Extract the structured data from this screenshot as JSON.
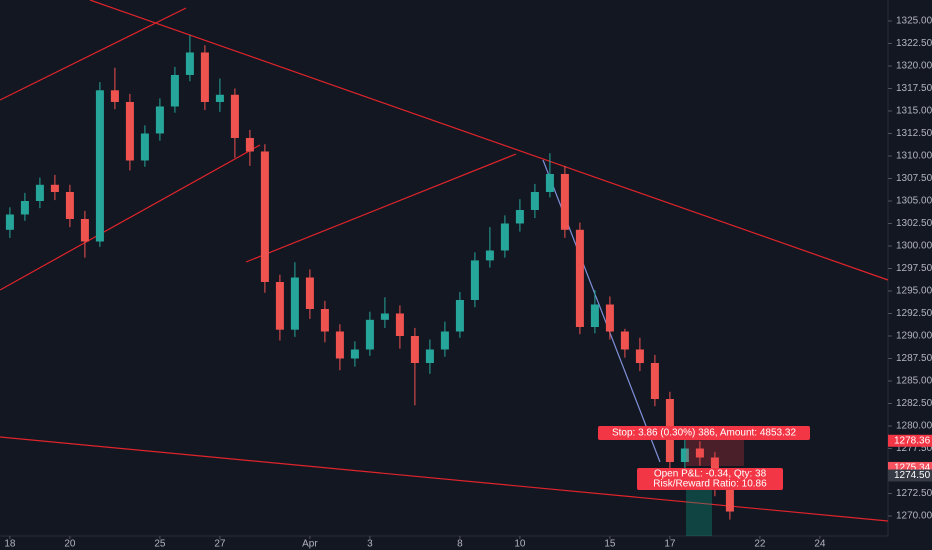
{
  "chart_data": {
    "type": "candlestick",
    "up_color": "#26a69a",
    "down_color": "#ef5350",
    "xlim": [
      -0.33,
      29.27
    ],
    "ylim": [
      1267.78,
      1327.33
    ],
    "grid": false,
    "xticks": [
      {
        "value": 0,
        "label": "18"
      },
      {
        "value": 2,
        "label": "20"
      },
      {
        "value": 5,
        "label": "25"
      },
      {
        "value": 7,
        "label": "27"
      },
      {
        "value": 10,
        "label": "Apr"
      },
      {
        "value": 12,
        "label": "3"
      },
      {
        "value": 15,
        "label": "8"
      },
      {
        "value": 17,
        "label": "10"
      },
      {
        "value": 20,
        "label": "15"
      },
      {
        "value": 22,
        "label": "17"
      },
      {
        "value": 25,
        "label": "22"
      },
      {
        "value": 27,
        "label": "24"
      }
    ],
    "yticks": [
      {
        "value": 1270,
        "label": "1270.00"
      },
      {
        "value": 1272.5,
        "label": "1272.50"
      },
      {
        "value": 1275,
        "label": "1275.00"
      },
      {
        "value": 1277.5,
        "label": "1277.50"
      },
      {
        "value": 1280,
        "label": "1280.00"
      },
      {
        "value": 1282.5,
        "label": "1282.50"
      },
      {
        "value": 1285,
        "label": "1285.00"
      },
      {
        "value": 1287.5,
        "label": "1287.50"
      },
      {
        "value": 1290,
        "label": "1290.00"
      },
      {
        "value": 1292.5,
        "label": "1292.50"
      },
      {
        "value": 1295,
        "label": "1295.00"
      },
      {
        "value": 1297.5,
        "label": "1297.50"
      },
      {
        "value": 1300,
        "label": "1300.00"
      },
      {
        "value": 1302.5,
        "label": "1302.50"
      },
      {
        "value": 1305,
        "label": "1305.00"
      },
      {
        "value": 1307.5,
        "label": "1307.50"
      },
      {
        "value": 1310,
        "label": "1310.00"
      },
      {
        "value": 1312.5,
        "label": "1312.50"
      },
      {
        "value": 1315,
        "label": "1315.00"
      },
      {
        "value": 1317.5,
        "label": "1317.50"
      },
      {
        "value": 1320,
        "label": "1320.00"
      },
      {
        "value": 1322.5,
        "label": "1322.50"
      },
      {
        "value": 1325,
        "label": "1325.00"
      }
    ],
    "x": [
      0,
      0.5,
      1,
      1.5,
      2,
      2.5,
      3,
      3.5,
      4,
      4.5,
      5,
      5.5,
      6,
      6.5,
      7,
      7.5,
      8,
      8.5,
      9,
      9.5,
      10,
      10.5,
      11,
      11.5,
      12,
      12.5,
      13,
      13.5,
      14,
      14.5,
      15,
      15.5,
      16,
      16.5,
      17,
      17.5,
      18,
      18.5,
      19,
      19.5,
      20,
      20.5,
      21,
      21.5,
      22,
      22.5,
      23,
      23.5,
      24
    ],
    "open": [
      1301.8,
      1303.5,
      1305,
      1306.8,
      1306,
      1303,
      1300.5,
      1317.3,
      1316,
      1309.5,
      1312.5,
      1315.5,
      1319,
      1321.5,
      1316,
      1316.8,
      1312,
      1310.5,
      1296,
      1290.7,
      1296.5,
      1293,
      1290.5,
      1287.5,
      1288.5,
      1291.8,
      1292.5,
      1290,
      1287,
      1288.5,
      1290.5,
      1294,
      1298.4,
      1299.5,
      1302.5,
      1304,
      1306,
      1308,
      1301.8,
      1291,
      1293.5,
      1290.5,
      1288.5,
      1287,
      1283,
      1276,
      1277.5,
      1276.5,
      1273
    ],
    "high": [
      1304.3,
      1305.9,
      1307.6,
      1307.9,
      1306.8,
      1303.9,
      1318.2,
      1319.8,
      1316.9,
      1313.4,
      1316.4,
      1319.9,
      1323.4,
      1322.3,
      1318.6,
      1317.5,
      1312.9,
      1311.3,
      1296.8,
      1298.2,
      1297.4,
      1293.9,
      1291.3,
      1289.4,
      1292.7,
      1294.3,
      1293.4,
      1290.9,
      1289.6,
      1291.6,
      1294.9,
      1299.3,
      1302.1,
      1303.4,
      1305.2,
      1306.9,
      1310.3,
      1308.9,
      1302.6,
      1295.1,
      1294.4,
      1290.8,
      1289.8,
      1287.9,
      1283.8,
      1278.6,
      1278.3,
      1277.1,
      1273.8
    ],
    "low": [
      1300.9,
      1302.8,
      1304.2,
      1305.1,
      1302.1,
      1298.7,
      1299.9,
      1315.2,
      1308.4,
      1308.8,
      1311.7,
      1314.8,
      1318.3,
      1315.1,
      1314.9,
      1309.8,
      1308.9,
      1294.8,
      1289.5,
      1289.9,
      1291.9,
      1289.3,
      1286.2,
      1286.6,
      1287.8,
      1290.9,
      1288.6,
      1282.3,
      1285.8,
      1287.7,
      1289.8,
      1293.2,
      1297.6,
      1298.7,
      1301.6,
      1303.1,
      1305.4,
      1300.9,
      1290.2,
      1290.3,
      1289.6,
      1287.6,
      1286.1,
      1282.2,
      1274.9,
      1275.1,
      1275.6,
      1272.2,
      1269.6
    ],
    "close": [
      1303.5,
      1305,
      1306.8,
      1306,
      1303,
      1300.5,
      1317.3,
      1316,
      1309.5,
      1312.5,
      1315.5,
      1319,
      1321.5,
      1316,
      1316.8,
      1312,
      1310.5,
      1296,
      1290.7,
      1296.5,
      1293,
      1290.5,
      1287.5,
      1288.5,
      1291.8,
      1292.5,
      1290,
      1287,
      1288.5,
      1290.5,
      1294,
      1298.4,
      1299.5,
      1302.5,
      1304,
      1306,
      1308,
      1301.8,
      1291,
      1293.5,
      1290.5,
      1288.5,
      1287,
      1283,
      1276,
      1277.5,
      1276.5,
      1273,
      1270.5
    ],
    "price_labels": [
      {
        "value": 1278.36,
        "label": "1278.36",
        "color": "#f23645"
      },
      {
        "value": 1275.34,
        "label": "1275.34",
        "color": "#f7525f"
      },
      {
        "value": 1274.5,
        "label": "1274.50",
        "color": "#363a45"
      }
    ],
    "annotations": {
      "stop": "Stop: 3.86 (0.30%) 386, Amount: 4853.32",
      "pnl": "Open P&L: -0.34, Qty: 38",
      "ratio": "Risk/Reward Ratio: 10.86"
    }
  }
}
